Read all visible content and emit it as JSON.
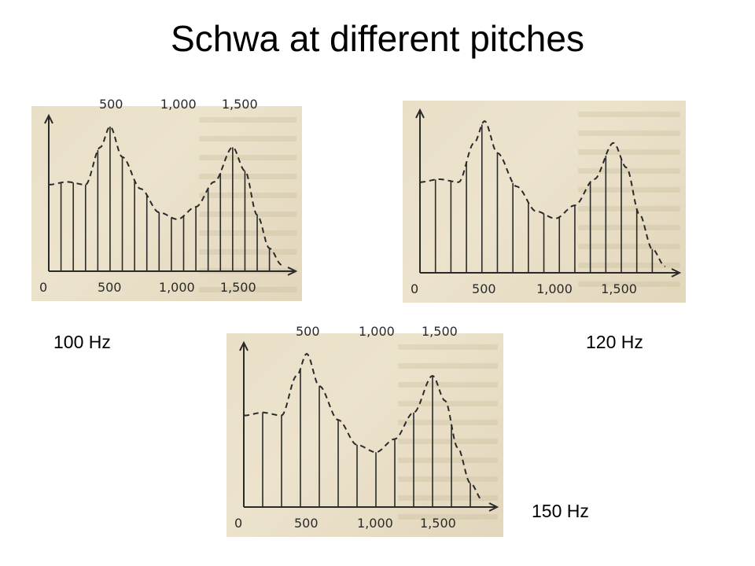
{
  "title": "Schwa at different pitches",
  "colors": {
    "ink": "#2a2a2a",
    "paper": "#e9dfc7",
    "background_text": "#c9bc9c"
  },
  "panels": [
    {
      "label": "100 Hz",
      "x_ticks": [
        "0",
        "500",
        "1,000",
        "1,500"
      ],
      "top_ticks": [
        "500",
        "1,000",
        "1,500"
      ],
      "harmonic_spacing_hz": 100
    },
    {
      "label": "120 Hz",
      "x_ticks": [
        "0",
        "500",
        "1,000",
        "1,500"
      ],
      "top_ticks": [],
      "harmonic_spacing_hz": 120
    },
    {
      "label": "150 Hz",
      "x_ticks": [
        "0",
        "500",
        "1,000",
        "1,500"
      ],
      "top_ticks": [
        "500",
        "1,000",
        "1,500"
      ],
      "harmonic_spacing_hz": 150
    }
  ]
}
